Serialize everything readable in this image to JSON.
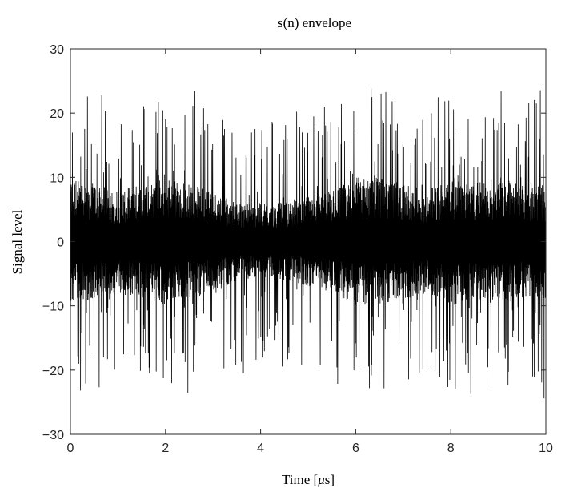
{
  "chart_data": {
    "type": "line",
    "title": "s(n) envelope",
    "xlabel_prefix": "Time [",
    "xlabel_unit": "μ",
    "xlabel_suffix": "s]",
    "ylabel": "Signal level",
    "xlim": [
      0,
      10
    ],
    "ylim": [
      -30,
      30
    ],
    "xticks": [
      0,
      2,
      4,
      6,
      8,
      10
    ],
    "yticks": [
      -30,
      -20,
      -10,
      0,
      10,
      20,
      30
    ],
    "xtick_labels": [
      "0",
      "2",
      "4",
      "6",
      "8",
      "10"
    ],
    "ytick_labels": [
      "−30",
      "−20",
      "−10",
      "0",
      "10",
      "20",
      "30"
    ],
    "grid": false,
    "legend": "none",
    "line_color": "#000000",
    "series": [
      {
        "x": [
          0,
          0.5,
          1,
          1.5,
          2,
          2.5,
          3,
          3.5,
          4,
          4.5,
          5,
          5.5,
          6,
          6.5,
          7,
          7.5,
          8,
          8.5,
          9,
          9.5,
          10
        ],
        "upper": [
          25,
          24,
          21,
          22,
          24,
          25,
          22,
          20,
          21,
          20,
          21,
          23,
          24,
          25,
          22,
          21,
          25,
          24,
          25,
          23,
          25
        ],
        "lower": [
          -25,
          -23,
          -22,
          -23,
          -24,
          -25,
          -22,
          -21,
          -20,
          -20,
          -21,
          -23,
          -24,
          -24,
          -22,
          -21,
          -25,
          -24,
          -24,
          -23,
          -25
        ],
        "core_upper": [
          10,
          9,
          8,
          9,
          10,
          9,
          8,
          6,
          6,
          6,
          7,
          8,
          10,
          10,
          9,
          8,
          10,
          9,
          10,
          9,
          9
        ],
        "core_lower": [
          -10,
          -9,
          -8,
          -9,
          -10,
          -9,
          -8,
          -6,
          -6,
          -6,
          -7,
          -8,
          -10,
          -10,
          -9,
          -8,
          -10,
          -9,
          -10,
          -9,
          -9
        ]
      }
    ]
  }
}
